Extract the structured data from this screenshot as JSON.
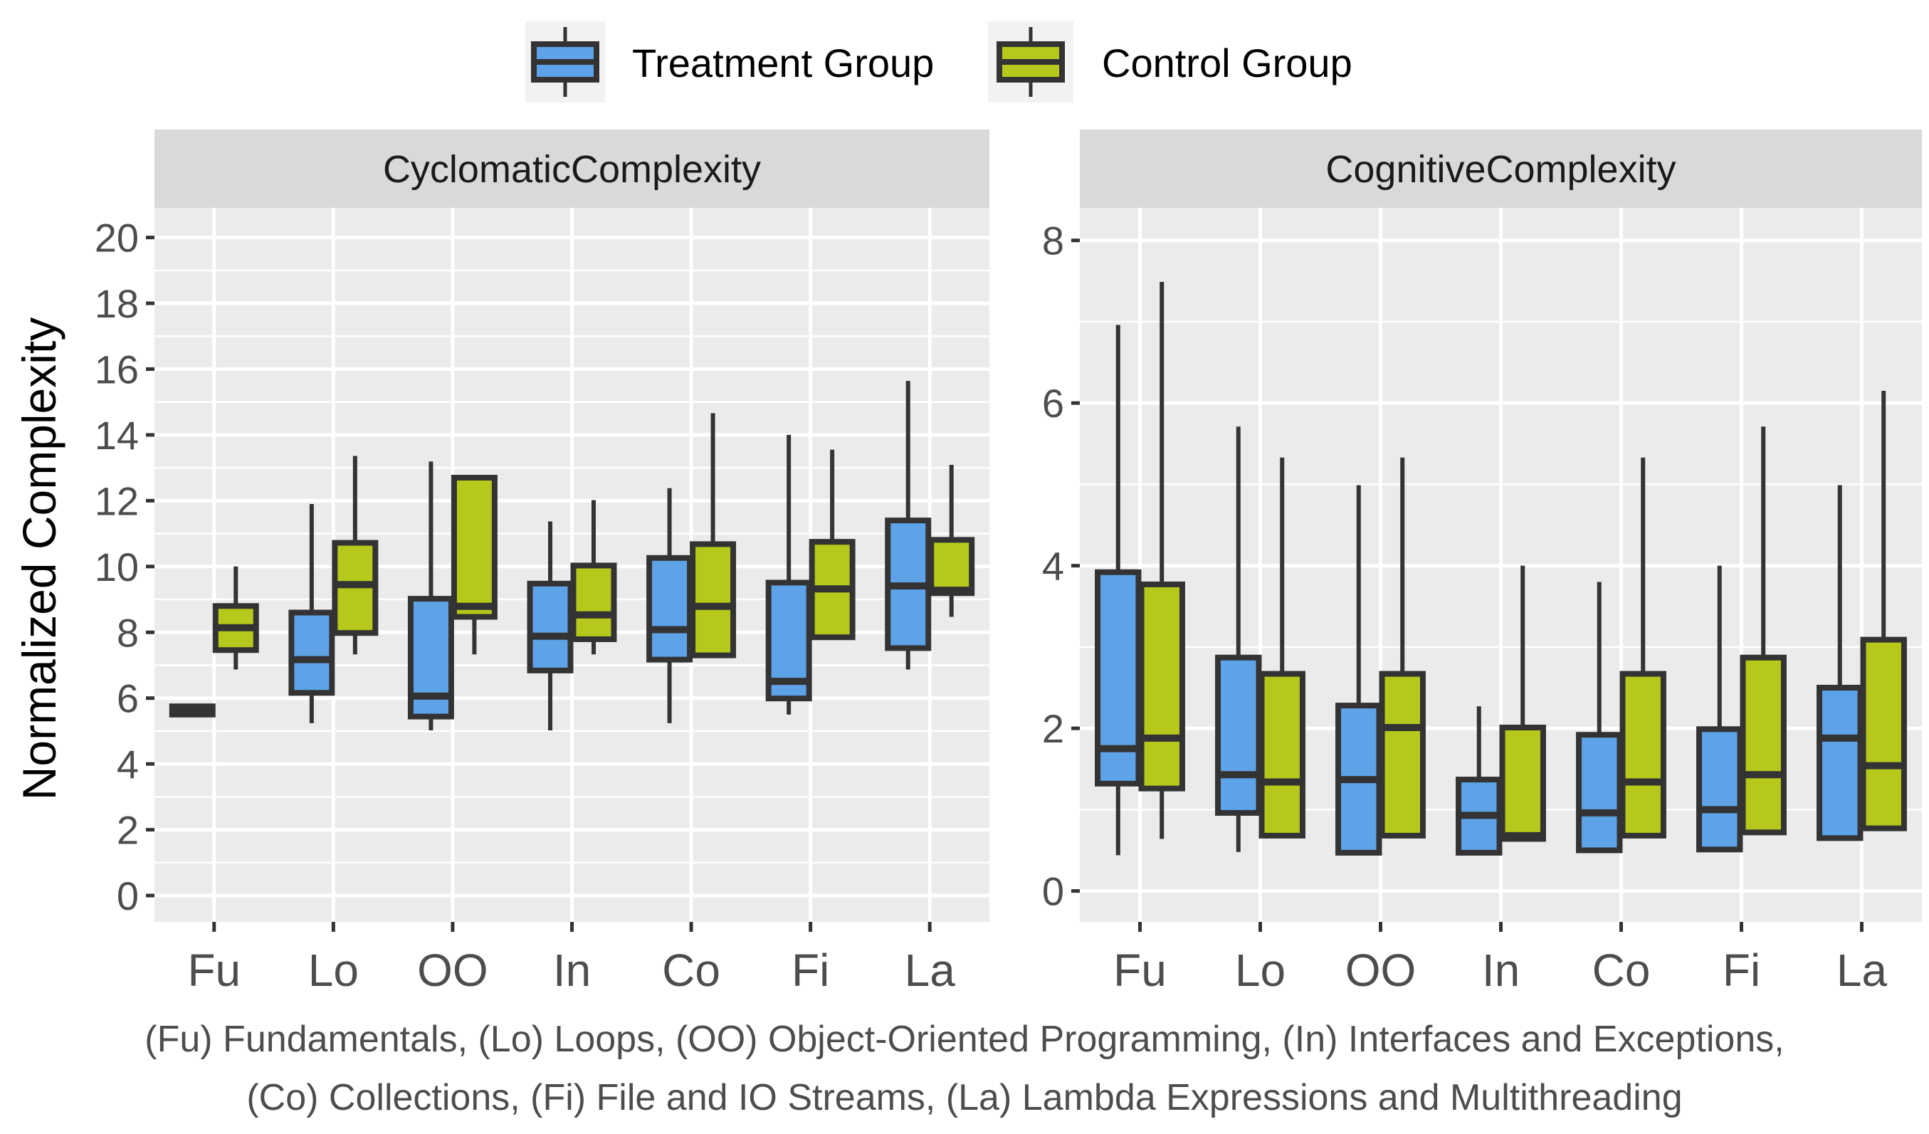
{
  "chart_data": {
    "type": "boxplot",
    "legend": {
      "position": "top",
      "entries": [
        {
          "name": "Treatment Group",
          "color": "#5EA3E8"
        },
        {
          "name": "Control Group",
          "color": "#B5C81B"
        }
      ]
    },
    "ylabel": "Normalized Complexity",
    "categories": [
      "Fu",
      "Lo",
      "OO",
      "In",
      "Co",
      "Fi",
      "La"
    ],
    "colors": {
      "treatment": "#5EA3E8",
      "control": "#B5C81B",
      "outline": "#333333",
      "panel_bg": "#EBEBEB",
      "strip_bg": "#D9D9D9",
      "grid": "#FFFFFF"
    },
    "facets": [
      {
        "title": "CyclomaticComplexity",
        "ylim": [
          -0.8,
          20.9
        ],
        "yticks": [
          0,
          2,
          4,
          6,
          8,
          10,
          12,
          14,
          16,
          18,
          20
        ],
        "series": [
          {
            "name": "Treatment Group",
            "boxes": [
              {
                "min": 5.5,
                "q1": 5.5,
                "median": 5.6,
                "q3": 5.75,
                "max": 5.75
              },
              {
                "min": 5.24,
                "q1": 6.16,
                "median": 7.17,
                "q3": 8.6,
                "max": 11.9
              },
              {
                "min": 5.02,
                "q1": 5.44,
                "median": 6.06,
                "q3": 9.02,
                "max": 13.19
              },
              {
                "min": 5.02,
                "q1": 6.84,
                "median": 7.88,
                "q3": 9.48,
                "max": 11.37
              },
              {
                "min": 5.24,
                "q1": 7.17,
                "median": 8.08,
                "q3": 10.26,
                "max": 12.38
              },
              {
                "min": 5.5,
                "q1": 5.99,
                "median": 6.51,
                "q3": 9.51,
                "max": 14.0
              },
              {
                "min": 6.87,
                "q1": 7.52,
                "median": 9.41,
                "q3": 11.4,
                "max": 15.64
              }
            ]
          },
          {
            "name": "Control Group",
            "boxes": [
              {
                "min": 6.87,
                "q1": 7.46,
                "median": 8.14,
                "q3": 8.8,
                "max": 10.0
              },
              {
                "min": 7.33,
                "q1": 7.98,
                "median": 9.45,
                "q3": 10.72,
                "max": 13.36
              },
              {
                "min": 7.33,
                "q1": 8.47,
                "median": 8.79,
                "q3": 12.7,
                "max": 12.7
              },
              {
                "min": 7.33,
                "q1": 7.79,
                "median": 8.53,
                "q3": 10.03,
                "max": 12.02
              },
              {
                "min": 7.3,
                "q1": 7.3,
                "median": 8.79,
                "q3": 10.68,
                "max": 14.66
              },
              {
                "min": 7.85,
                "q1": 7.85,
                "median": 9.32,
                "q3": 10.75,
                "max": 13.55
              },
              {
                "min": 8.47,
                "q1": 9.19,
                "median": 9.28,
                "q3": 10.81,
                "max": 13.09
              }
            ]
          }
        ]
      },
      {
        "title": "CognitiveComplexity",
        "ylim": [
          -0.38,
          8.4
        ],
        "yticks": [
          0,
          2,
          4,
          6,
          8
        ],
        "series": [
          {
            "name": "Treatment Group",
            "boxes": [
              {
                "min": 0.44,
                "q1": 1.32,
                "median": 1.75,
                "q3": 3.92,
                "max": 6.96
              },
              {
                "min": 0.48,
                "q1": 0.96,
                "median": 1.43,
                "q3": 2.87,
                "max": 5.71
              },
              {
                "min": 0.47,
                "q1": 0.47,
                "median": 1.37,
                "q3": 2.28,
                "max": 4.99
              },
              {
                "min": 0.47,
                "q1": 0.47,
                "median": 0.93,
                "q3": 1.37,
                "max": 2.27
              },
              {
                "min": 0.5,
                "q1": 0.5,
                "median": 0.96,
                "q3": 1.92,
                "max": 3.8
              },
              {
                "min": 0.51,
                "q1": 0.51,
                "median": 1.0,
                "q3": 1.99,
                "max": 4.0
              },
              {
                "min": 0.65,
                "q1": 0.65,
                "median": 1.88,
                "q3": 2.5,
                "max": 4.99
              }
            ]
          },
          {
            "name": "Control Group",
            "boxes": [
              {
                "min": 0.64,
                "q1": 1.26,
                "median": 1.88,
                "q3": 3.77,
                "max": 7.49
              },
              {
                "min": 0.68,
                "q1": 0.68,
                "median": 1.34,
                "q3": 2.67,
                "max": 5.33
              },
              {
                "min": 0.68,
                "q1": 0.68,
                "median": 2.01,
                "q3": 2.67,
                "max": 5.33
              },
              {
                "min": 0.64,
                "q1": 0.64,
                "median": 0.68,
                "q3": 2.01,
                "max": 4.0
              },
              {
                "min": 0.68,
                "q1": 0.68,
                "median": 1.34,
                "q3": 2.67,
                "max": 5.33
              },
              {
                "min": 0.72,
                "q1": 0.72,
                "median": 1.43,
                "q3": 2.87,
                "max": 5.71
              },
              {
                "min": 0.77,
                "q1": 0.77,
                "median": 1.54,
                "q3": 3.09,
                "max": 6.15
              }
            ]
          }
        ]
      }
    ],
    "caption_lines": [
      "(Fu) Fundamentals, (Lo) Loops, (OO) Object-Oriented Programming, (In) Interfaces and Exceptions,",
      "(Co) Collections, (Fi) File and IO Streams, (La) Lambda Expressions and Multithreading"
    ]
  }
}
